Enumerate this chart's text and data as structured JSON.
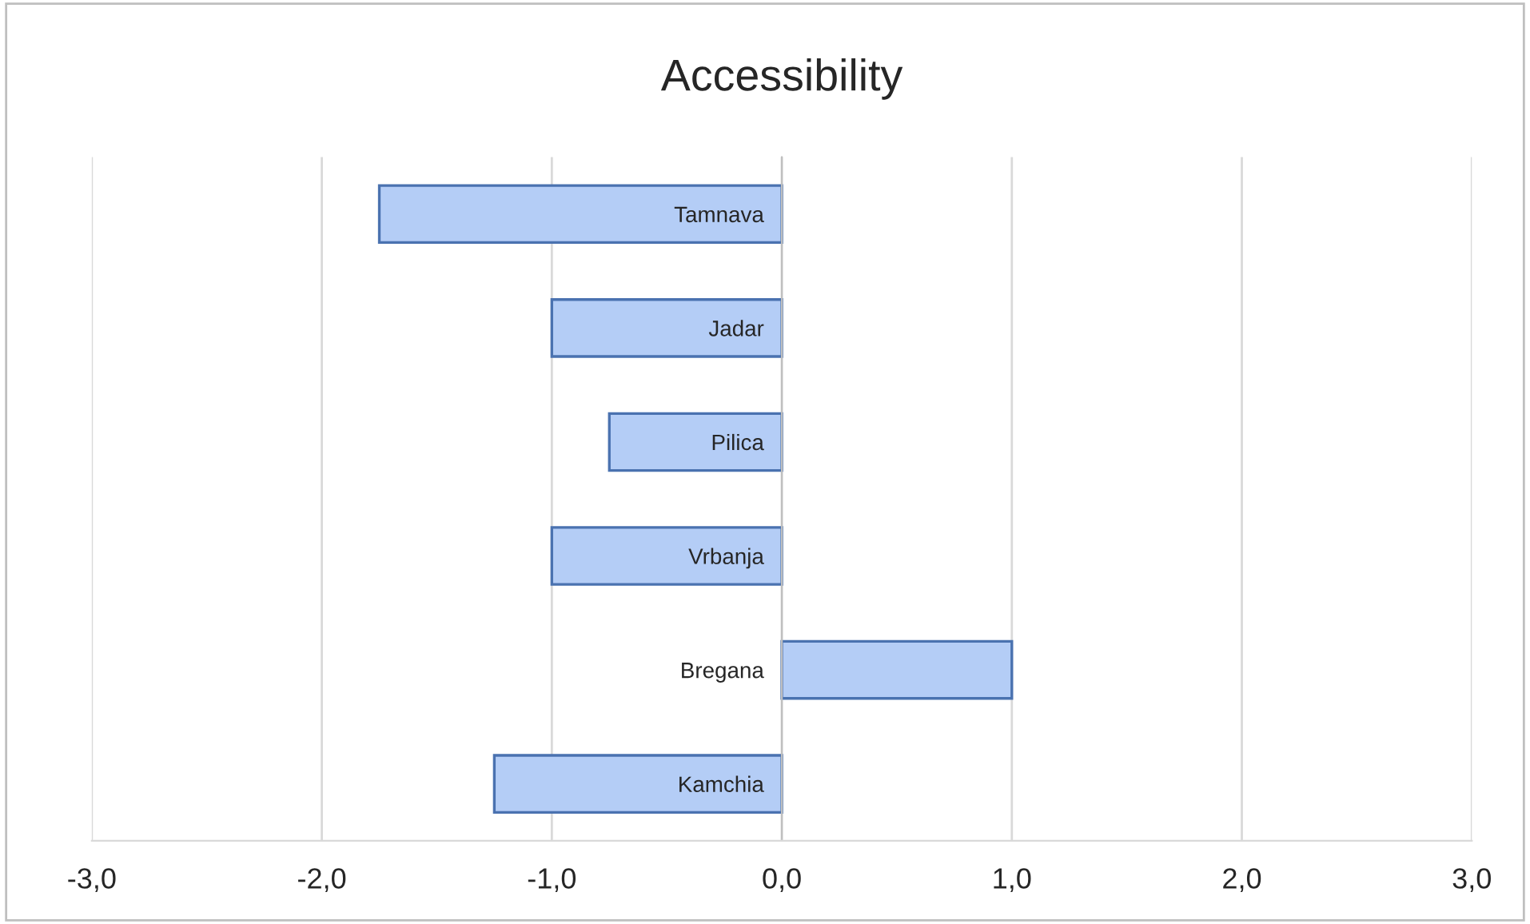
{
  "chart_data": {
    "type": "bar",
    "orientation": "horizontal",
    "title": "Accessibility",
    "categories": [
      "Tamnava",
      "Jadar",
      "Pilica",
      "Vrbanja",
      "Bregana",
      "Kamchia"
    ],
    "values": [
      -1.75,
      -1.0,
      -0.75,
      -1.0,
      1.0,
      -1.25
    ],
    "color": "#b4cdf6",
    "xlim": [
      -3,
      3
    ],
    "xticks": [
      {
        "value": -3,
        "label": "-3,0"
      },
      {
        "value": -2,
        "label": "-2,0"
      },
      {
        "value": -1,
        "label": "-1,0"
      },
      {
        "value": 0,
        "label": "0,0"
      },
      {
        "value": 1,
        "label": "1,0"
      },
      {
        "value": 2,
        "label": "2,0"
      },
      {
        "value": 3,
        "label": "3,0"
      }
    ],
    "grid": "x"
  }
}
